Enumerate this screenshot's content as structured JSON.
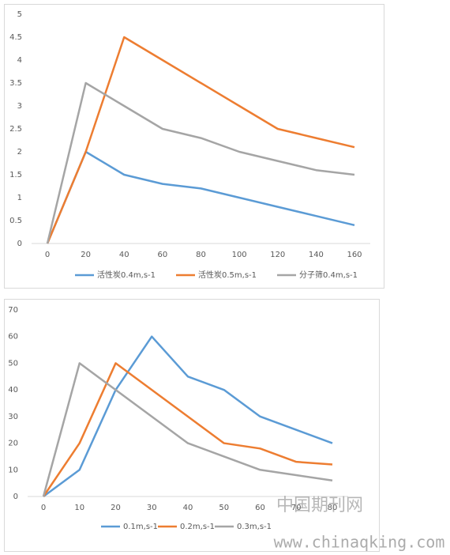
{
  "chart_data": [
    {
      "type": "line",
      "x": [
        0,
        20,
        40,
        60,
        80,
        100,
        120,
        140,
        160
      ],
      "xlim": [
        0,
        160
      ],
      "xticks": [
        0,
        20,
        40,
        60,
        80,
        100,
        120,
        140,
        160
      ],
      "ylim": [
        0,
        5
      ],
      "yticks": [
        0,
        0.5,
        1,
        1.5,
        2,
        2.5,
        3,
        3.5,
        4,
        4.5,
        5
      ],
      "grid": false,
      "legend": "bottom",
      "series": [
        {
          "name": "活性炭0.4m,s-1",
          "color": "#5b9bd5",
          "values": [
            0,
            2,
            1.5,
            1.3,
            1.2,
            1.0,
            0.8,
            0.6,
            0.4
          ]
        },
        {
          "name": "活性炭0.5m,s-1",
          "color": "#ed7d31",
          "values": [
            0,
            2,
            4.5,
            4,
            3.5,
            3,
            2.5,
            2.3,
            2.1
          ]
        },
        {
          "name": "分子筛0.4m,s-1",
          "color": "#a5a5a5",
          "values": [
            0,
            3.5,
            3,
            2.5,
            2.3,
            2,
            1.8,
            1.6,
            1.5
          ]
        }
      ]
    },
    {
      "type": "line",
      "x": [
        0,
        10,
        20,
        30,
        40,
        50,
        60,
        70,
        80
      ],
      "xlim": [
        0,
        80
      ],
      "xticks": [
        0,
        10,
        20,
        30,
        40,
        50,
        60,
        70,
        80
      ],
      "ylim": [
        0,
        70
      ],
      "yticks": [
        0,
        10,
        20,
        30,
        40,
        50,
        60,
        70
      ],
      "grid": false,
      "legend": "bottom",
      "series": [
        {
          "name": "0.1m,s-1",
          "color": "#5b9bd5",
          "values": [
            0,
            10,
            40,
            60,
            45,
            40,
            30,
            25,
            20
          ]
        },
        {
          "name": "0.2m,s-1",
          "color": "#ed7d31",
          "values": [
            0,
            20,
            50,
            40,
            30,
            20,
            18,
            13,
            12
          ]
        },
        {
          "name": "0.3m,s-1",
          "color": "#a5a5a5",
          "values": [
            0,
            50,
            40,
            30,
            20,
            15,
            10,
            8,
            6
          ]
        }
      ]
    }
  ],
  "watermark": {
    "title": "中国期刊网",
    "url": "www.chinaqking.com"
  }
}
